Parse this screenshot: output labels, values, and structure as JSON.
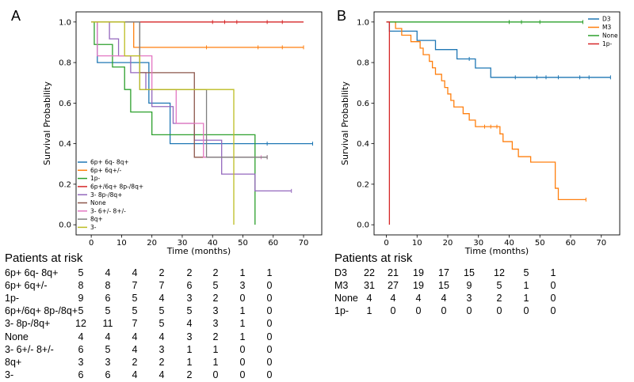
{
  "chart_data": [
    {
      "type": "line",
      "panel_label": "A",
      "xlabel": "Time (months)",
      "ylabel": "Survival Probability",
      "xlim": [
        -5,
        76
      ],
      "ylim": [
        -0.05,
        1.05
      ],
      "xticks": [
        0,
        10,
        20,
        30,
        40,
        50,
        60,
        70
      ],
      "yticks": [
        0.0,
        0.2,
        0.4,
        0.6,
        0.8,
        1.0
      ],
      "grid": false,
      "legend_position": "lower-left",
      "series": [
        {
          "name": "6p+ 6q- 8q+",
          "color": "#1f77b4",
          "steps": [
            [
              0,
              1.0
            ],
            [
              2,
              0.8
            ],
            [
              19,
              0.6
            ],
            [
              26,
              0.4
            ],
            [
              73,
              0.4
            ]
          ],
          "censors": [
            [
              58,
              0.4
            ],
            [
              73,
              0.4
            ]
          ]
        },
        {
          "name": "6p+ 6q+/-",
          "color": "#ff7f0e",
          "steps": [
            [
              0,
              1.0
            ],
            [
              14,
              0.875
            ],
            [
              70,
              0.875
            ]
          ],
          "censors": [
            [
              38,
              0.875
            ],
            [
              55,
              0.875
            ],
            [
              63,
              0.875
            ],
            [
              70,
              0.875
            ]
          ]
        },
        {
          "name": "1p-",
          "color": "#2ca02c",
          "steps": [
            [
              0,
              1.0
            ],
            [
              1,
              0.889
            ],
            [
              7,
              0.778
            ],
            [
              11,
              0.667
            ],
            [
              13,
              0.556
            ],
            [
              20,
              0.444
            ],
            [
              54,
              0.444
            ],
            [
              54,
              0.0
            ]
          ],
          "censors": []
        },
        {
          "name": "6p+/6q+ 8p-/8q+",
          "color": "#d62728",
          "steps": [
            [
              0,
              1.0
            ],
            [
              70,
              1.0
            ]
          ],
          "censors": [
            [
              40,
              1.0
            ],
            [
              44,
              1.0
            ],
            [
              48,
              1.0
            ],
            [
              58,
              1.0
            ],
            [
              63,
              1.0
            ]
          ]
        },
        {
          "name": "3- 8p-/8q+",
          "color": "#9467bd",
          "steps": [
            [
              0,
              1.0
            ],
            [
              6,
              0.917
            ],
            [
              9,
              0.833
            ],
            [
              13,
              0.75
            ],
            [
              18,
              0.667
            ],
            [
              20,
              0.583
            ],
            [
              27,
              0.5
            ],
            [
              34,
              0.417
            ],
            [
              43,
              0.333
            ],
            [
              43,
              0.25
            ],
            [
              54,
              0.25
            ],
            [
              54,
              0.167
            ],
            [
              66,
              0.167
            ]
          ],
          "censors": [
            [
              38,
              0.417
            ],
            [
              66,
              0.167
            ]
          ]
        },
        {
          "name": "None",
          "color": "#8c564b",
          "steps": [
            [
              0,
              1.0
            ],
            [
              16,
              1.0
            ],
            [
              16,
              0.75
            ],
            [
              34,
              0.75
            ],
            [
              34,
              0.333
            ],
            [
              58,
              0.333
            ]
          ],
          "censors": [
            [
              58,
              0.333
            ]
          ]
        },
        {
          "name": "3- 6+/- 8+/-",
          "color": "#e377c2",
          "steps": [
            [
              0,
              1.0
            ],
            [
              2,
              0.833
            ],
            [
              20,
              0.667
            ],
            [
              28,
              0.5
            ],
            [
              37,
              0.333
            ],
            [
              58,
              0.333
            ]
          ],
          "censors": [
            [
              56,
              0.333
            ],
            [
              58,
              0.333
            ]
          ]
        },
        {
          "name": "8q+",
          "color": "#7f7f7f",
          "steps": [
            [
              0,
              1.0
            ],
            [
              16,
              0.667
            ],
            [
              38,
              0.333
            ],
            [
              58,
              0.333
            ]
          ],
          "censors": [
            [
              58,
              0.333
            ]
          ]
        },
        {
          "name": "3-",
          "color": "#bcbd22",
          "steps": [
            [
              0,
              1.0
            ],
            [
              11,
              0.833
            ],
            [
              16,
              0.667
            ],
            [
              47,
              0.667
            ],
            [
              47,
              0.0
            ]
          ],
          "censors": []
        }
      ]
    },
    {
      "type": "line",
      "panel_label": "B",
      "xlabel": "Time (months)",
      "ylabel": "Survival Probability",
      "xlim": [
        -4,
        76
      ],
      "ylim": [
        -0.05,
        1.05
      ],
      "xticks": [
        0,
        10,
        20,
        30,
        40,
        50,
        60,
        70
      ],
      "yticks": [
        0.0,
        0.2,
        0.4,
        0.6,
        0.8,
        1.0
      ],
      "grid": false,
      "legend_position": "top-right",
      "series": [
        {
          "name": "D3",
          "color": "#1f77b4",
          "steps": [
            [
              0,
              1.0
            ],
            [
              1,
              0.955
            ],
            [
              10,
              0.955
            ],
            [
              10,
              0.909
            ],
            [
              16,
              0.909
            ],
            [
              16,
              0.864
            ],
            [
              23,
              0.864
            ],
            [
              23,
              0.818
            ],
            [
              29,
              0.818
            ],
            [
              29,
              0.773
            ],
            [
              34,
              0.773
            ],
            [
              34,
              0.727
            ],
            [
              73,
              0.727
            ]
          ],
          "censors": [
            [
              27,
              0.818
            ],
            [
              42,
              0.727
            ],
            [
              49,
              0.727
            ],
            [
              52,
              0.727
            ],
            [
              56,
              0.727
            ],
            [
              63,
              0.727
            ],
            [
              66,
              0.727
            ],
            [
              73,
              0.727
            ]
          ]
        },
        {
          "name": "M3",
          "color": "#ff7f0e",
          "steps": [
            [
              0,
              1.0
            ],
            [
              3,
              0.968
            ],
            [
              5,
              0.935
            ],
            [
              8,
              0.903
            ],
            [
              11,
              0.871
            ],
            [
              12,
              0.839
            ],
            [
              14,
              0.806
            ],
            [
              15,
              0.774
            ],
            [
              16,
              0.742
            ],
            [
              18,
              0.71
            ],
            [
              19,
              0.677
            ],
            [
              20,
              0.645
            ],
            [
              21,
              0.613
            ],
            [
              22,
              0.581
            ],
            [
              25,
              0.548
            ],
            [
              27,
              0.516
            ],
            [
              29,
              0.484
            ],
            [
              35,
              0.484
            ],
            [
              37,
              0.448
            ],
            [
              38,
              0.41
            ],
            [
              41,
              0.373
            ],
            [
              43,
              0.336
            ],
            [
              47,
              0.309
            ],
            [
              54,
              0.309
            ],
            [
              55,
              0.18
            ],
            [
              56,
              0.124
            ],
            [
              65,
              0.124
            ]
          ],
          "censors": [
            [
              32,
              0.484
            ],
            [
              34,
              0.484
            ],
            [
              36,
              0.484
            ],
            [
              65,
              0.124
            ]
          ]
        },
        {
          "name": "None",
          "color": "#2ca02c",
          "steps": [
            [
              0,
              1.0
            ],
            [
              64,
              1.0
            ]
          ],
          "censors": [
            [
              40,
              1.0
            ],
            [
              44,
              1.0
            ],
            [
              50,
              1.0
            ],
            [
              64,
              1.0
            ]
          ]
        },
        {
          "name": "1p-",
          "color": "#d62728",
          "steps": [
            [
              0,
              1.0
            ],
            [
              1,
              1.0
            ],
            [
              1,
              0.0
            ]
          ],
          "censors": []
        }
      ]
    }
  ],
  "risk_tables": [
    {
      "title": "Patients at risk",
      "rows": [
        {
          "label": "6p+ 6q- 8q+",
          "values": [
            "5",
            "4",
            "4",
            "2",
            "2",
            "2",
            "1",
            "1"
          ]
        },
        {
          "label": "6p+ 6q+/-",
          "values": [
            "8",
            "8",
            "7",
            "7",
            "6",
            "5",
            "3",
            "0"
          ]
        },
        {
          "label": "1p-",
          "values": [
            "9",
            "6",
            "5",
            "4",
            "3",
            "2",
            "0",
            "0"
          ]
        },
        {
          "label": "6p+/6q+ 8p-/8q+",
          "values": [
            "5",
            "5",
            "5",
            "5",
            "5",
            "3",
            "1",
            "0"
          ]
        },
        {
          "label": "3- 8p-/8q+",
          "values": [
            "12",
            "11",
            "7",
            "5",
            "4",
            "3",
            "1",
            "0"
          ]
        },
        {
          "label": "None",
          "values": [
            "4",
            "4",
            "4",
            "4",
            "3",
            "2",
            "1",
            "0"
          ]
        },
        {
          "label": "3- 6+/- 8+/-",
          "values": [
            "6",
            "5",
            "4",
            "3",
            "1",
            "1",
            "0",
            "0"
          ]
        },
        {
          "label": "8q+",
          "values": [
            "3",
            "3",
            "2",
            "2",
            "1",
            "1",
            "0",
            "0"
          ]
        },
        {
          "label": "3-",
          "values": [
            "6",
            "6",
            "4",
            "4",
            "2",
            "0",
            "0",
            "0"
          ]
        }
      ]
    },
    {
      "title": "Patients at risk",
      "rows": [
        {
          "label": "D3",
          "values": [
            "22",
            "21",
            "19",
            "17",
            "15",
            "12",
            "5",
            "1"
          ]
        },
        {
          "label": "M3",
          "values": [
            "31",
            "27",
            "19",
            "15",
            "9",
            "5",
            "1",
            "0"
          ]
        },
        {
          "label": "None",
          "values": [
            "4",
            "4",
            "4",
            "4",
            "3",
            "2",
            "1",
            "0"
          ]
        },
        {
          "label": "1p-",
          "values": [
            "1",
            "0",
            "0",
            "0",
            "0",
            "0",
            "0",
            "0"
          ]
        }
      ]
    }
  ]
}
